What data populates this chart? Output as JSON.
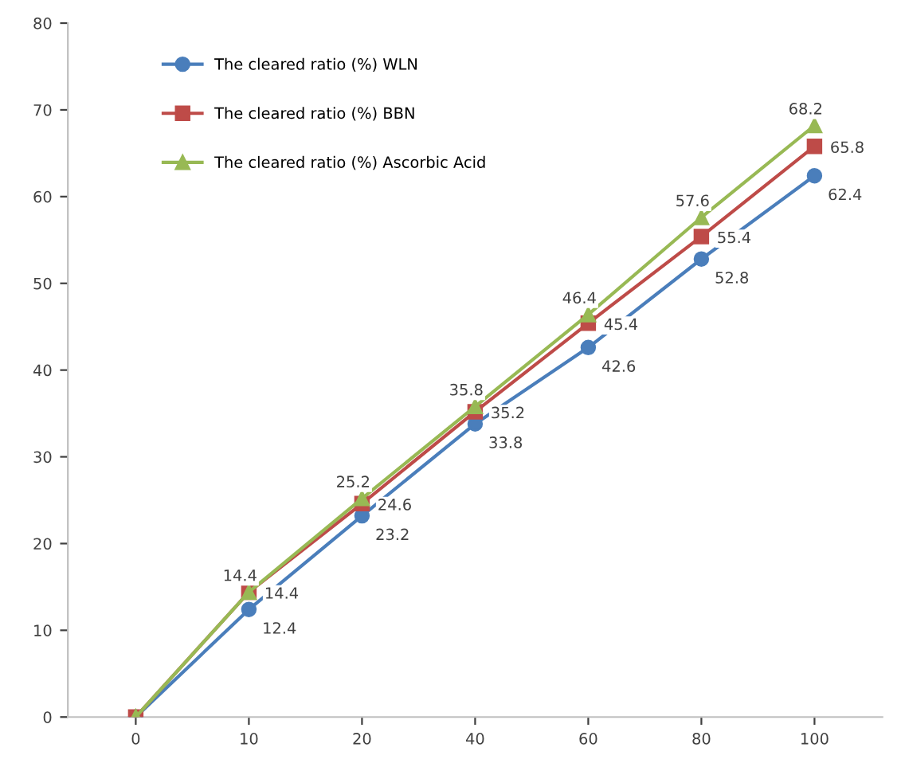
{
  "chart_data": {
    "type": "line",
    "categories": [
      "0",
      "10",
      "20",
      "40",
      "60",
      "80",
      "100"
    ],
    "series": [
      {
        "name": "The cleared ratio (%) WLN",
        "color": "#4a7ebb",
        "marker": "circle",
        "values": [
          0,
          12.4,
          23.2,
          33.8,
          42.6,
          52.8,
          62.4
        ],
        "value_labels": [
          null,
          "12.4",
          "23.2",
          "33.8",
          "42.6",
          "52.8",
          "62.4"
        ]
      },
      {
        "name": "The cleared ratio (%) BBN",
        "color": "#be4b48",
        "marker": "square",
        "values": [
          0,
          14.4,
          24.6,
          35.2,
          45.4,
          55.4,
          65.8
        ],
        "value_labels": [
          null,
          "14.4",
          "24.6",
          "35.2",
          "45.4",
          "55.4",
          "65.8"
        ]
      },
      {
        "name": "The cleared ratio (%) Ascorbic Acid",
        "color": "#98b954",
        "marker": "triangle",
        "values": [
          0,
          14.4,
          25.2,
          35.8,
          46.4,
          57.6,
          68.2
        ],
        "value_labels": [
          null,
          "14.4",
          "25.2",
          "35.8",
          "46.4",
          "57.6",
          "68.2"
        ]
      }
    ],
    "ylim": [
      0,
      80
    ],
    "yticks": [
      0,
      10,
      20,
      30,
      40,
      50,
      60,
      70,
      80
    ],
    "grid": false,
    "legend": "top left"
  }
}
